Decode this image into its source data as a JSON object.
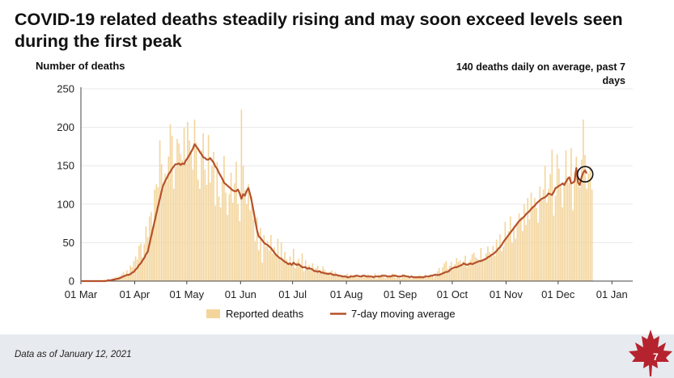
{
  "slide": {
    "title": "COVID-19 related deaths steadily rising and may soon exceed levels seen during the first peak",
    "callout": "140 deaths daily on average, past 7 days",
    "data_as_of": "Data as of January 12, 2021",
    "page_number": "7"
  },
  "colors": {
    "bars": "#f3d59c",
    "line": "#b5522c",
    "footer": "#e7eaee",
    "leaf": "#b5232e"
  },
  "chart_data": {
    "type": "bar",
    "ylabel": "Number of deaths",
    "ylim": [
      0,
      250
    ],
    "yticks": [
      0,
      50,
      100,
      150,
      200,
      250
    ],
    "x_start": "2020-03-01",
    "x_end": "2021-01-12",
    "xticks": [
      {
        "date": "2020-03-01",
        "label": "01 Mar"
      },
      {
        "date": "2020-04-01",
        "label": "01 Apr"
      },
      {
        "date": "2020-05-01",
        "label": "01 May"
      },
      {
        "date": "2020-06-01",
        "label": "01 Jun"
      },
      {
        "date": "2020-07-01",
        "label": "01 Jul"
      },
      {
        "date": "2020-08-01",
        "label": "01 Aug"
      },
      {
        "date": "2020-09-01",
        "label": "01 Sep"
      },
      {
        "date": "2020-10-01",
        "label": "01 Oct"
      },
      {
        "date": "2020-11-01",
        "label": "01 Nov"
      },
      {
        "date": "2020-12-01",
        "label": "01 Dec"
      },
      {
        "date": "2021-01-01",
        "label": "01 Jan"
      }
    ],
    "series": [
      {
        "name": "Reported deaths",
        "kind": "bar",
        "start_date": "2020-03-01",
        "values": [
          0,
          0,
          0,
          0,
          0,
          0,
          0,
          1,
          0,
          1,
          0,
          1,
          0,
          2,
          0,
          1,
          2,
          3,
          2,
          5,
          4,
          6,
          6,
          9,
          12,
          8,
          14,
          10,
          20,
          18,
          26,
          32,
          28,
          46,
          49,
          31,
          48,
          71,
          57,
          84,
          90,
          70,
          119,
          126,
          122,
          183,
          152,
          119,
          140,
          130,
          162,
          204,
          189,
          120,
          148,
          185,
          179,
          165,
          157,
          200,
          153,
          207,
          183,
          170,
          145,
          210,
          180,
          132,
          120,
          170,
          192,
          145,
          125,
          190,
          128,
          150,
          168,
          98,
          155,
          110,
          96,
          130,
          163,
          115,
          86,
          113,
          141,
          102,
          127,
          155,
          100,
          78,
          223,
          150,
          118,
          100,
          126,
          92,
          110,
          80,
          52,
          83,
          40,
          69,
          24,
          60,
          45,
          52,
          40,
          60,
          36,
          44,
          34,
          55,
          31,
          50,
          27,
          38,
          28,
          24,
          32,
          22,
          42,
          17,
          25,
          29,
          21,
          36,
          13,
          27,
          18,
          21,
          15,
          23,
          12,
          17,
          20,
          11,
          13,
          19,
          15,
          9,
          12,
          8,
          14,
          10,
          12,
          9,
          6,
          5,
          8,
          7,
          8,
          10,
          5,
          9,
          6,
          8,
          7,
          5,
          4,
          7,
          8,
          5,
          6,
          9,
          7,
          4,
          6,
          10,
          3,
          8,
          6,
          9,
          5,
          4,
          7,
          8,
          6,
          10,
          9,
          4,
          5,
          7,
          3,
          9,
          8,
          4,
          5,
          6,
          3,
          6,
          5,
          4,
          7,
          8,
          6,
          5,
          9,
          4,
          6,
          7,
          8,
          5,
          10,
          13,
          17,
          9,
          18,
          23,
          26,
          16,
          20,
          25,
          15,
          22,
          30,
          25,
          27,
          20,
          26,
          33,
          18,
          24,
          28,
          35,
          37,
          31,
          29,
          25,
          43,
          28,
          30,
          36,
          45,
          38,
          34,
          46,
          33,
          54,
          44,
          61,
          39,
          45,
          77,
          58,
          65,
          84,
          50,
          72,
          55,
          77,
          88,
          83,
          65,
          100,
          73,
          108,
          80,
          115,
          98,
          108,
          95,
          76,
          123,
          105,
          119,
          150,
          102,
          120,
          139,
          171,
          85,
          111,
          165,
          146,
          123,
          96,
          129,
          170,
          132,
          127,
          173,
          92,
          142,
          162,
          136,
          122,
          158,
          210,
          164,
          120,
          140,
          149,
          119
        ],
        "note": "Daily counts estimated from bar heights"
      },
      {
        "name": "7-day moving average",
        "kind": "line",
        "start_date": "2020-03-01",
        "values": [
          0,
          0,
          0,
          0,
          0,
          0,
          0,
          0,
          0,
          0,
          0,
          0,
          0,
          0,
          0,
          1,
          1,
          1,
          2,
          2,
          3,
          3,
          4,
          5,
          6,
          7,
          8,
          8,
          9,
          11,
          12,
          15,
          17,
          21,
          23,
          27,
          30,
          35,
          38,
          48,
          58,
          68,
          78,
          88,
          98,
          107,
          117,
          125,
          130,
          134,
          139,
          142,
          146,
          149,
          152,
          152,
          153,
          151,
          153,
          152,
          157,
          160,
          164,
          168,
          172,
          178,
          175,
          172,
          168,
          165,
          161,
          160,
          158,
          158,
          160,
          157,
          154,
          149,
          146,
          141,
          137,
          133,
          128,
          126,
          124,
          122,
          120,
          118,
          117,
          117,
          119,
          114,
          107,
          113,
          111,
          117,
          121,
          113,
          103,
          91,
          78,
          66,
          58,
          56,
          53,
          50,
          48,
          47,
          45,
          43,
          40,
          37,
          34,
          32,
          30,
          29,
          27,
          25,
          24,
          22,
          23,
          21,
          24,
          22,
          21,
          22,
          20,
          18,
          18,
          18,
          16,
          17,
          16,
          15,
          13,
          13,
          12,
          13,
          11,
          11,
          10,
          10,
          9,
          10,
          9,
          8,
          8,
          8,
          7,
          7,
          6,
          6,
          6,
          5,
          5,
          6,
          6,
          6,
          7,
          7,
          6,
          6,
          7,
          7,
          6,
          6,
          6,
          6,
          5,
          6,
          6,
          6,
          6,
          7,
          7,
          7,
          6,
          6,
          6,
          7,
          7,
          7,
          6,
          6,
          6,
          7,
          7,
          6,
          6,
          5,
          6,
          5,
          5,
          5,
          5,
          5,
          5,
          5,
          6,
          6,
          6,
          7,
          7,
          8,
          8,
          8,
          8,
          9,
          10,
          11,
          12,
          12,
          14,
          16,
          17,
          18,
          18,
          19,
          20,
          21,
          23,
          22,
          21,
          22,
          23,
          22,
          23,
          24,
          25,
          26,
          26,
          27,
          28,
          29,
          31,
          32,
          34,
          35,
          37,
          39,
          42,
          44,
          47,
          51,
          54,
          57,
          60,
          63,
          66,
          69,
          72,
          75,
          78,
          80,
          82,
          84,
          87,
          89,
          91,
          94,
          96,
          98,
          101,
          103,
          105,
          107,
          108,
          109,
          111,
          114,
          113,
          112,
          116,
          121,
          122,
          124,
          125,
          127,
          125,
          129,
          133,
          135,
          127,
          128,
          130,
          147,
          128,
          125,
          135,
          141,
          144,
          140
        ],
        "note": "Values estimated from line position"
      }
    ],
    "legend": "bottom-center",
    "annotation": "circle marks the latest 7-day average"
  }
}
